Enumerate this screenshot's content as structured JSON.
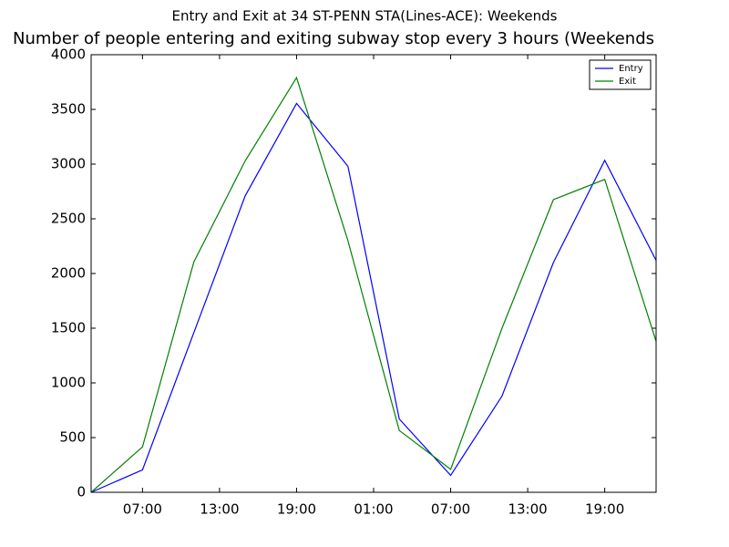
{
  "chart_data": {
    "type": "line",
    "suptitle": "Entry and Exit at 34 ST-PENN STA(Lines-ACE): Weekends",
    "title": "Number of people entering and exiting subway stop every 3 hours (Weekends",
    "x": [
      3,
      7,
      11,
      15,
      19,
      23,
      27,
      31,
      35,
      39,
      43,
      47
    ],
    "series": [
      {
        "name": "Entry",
        "color": "#0000ff",
        "values": [
          0,
          205,
          1460,
          2710,
          3555,
          2980,
          670,
          155,
          880,
          2100,
          3035,
          2120
        ]
      },
      {
        "name": "Exit",
        "color": "#008000",
        "values": [
          0,
          415,
          2105,
          3030,
          3790,
          2300,
          565,
          210,
          1500,
          2675,
          2860,
          1380
        ]
      }
    ],
    "xlim": [
      3,
      47
    ],
    "xticks": [
      {
        "value": 7,
        "label": "07:00"
      },
      {
        "value": 13,
        "label": "13:00"
      },
      {
        "value": 19,
        "label": "19:00"
      },
      {
        "value": 25,
        "label": "01:00"
      },
      {
        "value": 31,
        "label": "07:00"
      },
      {
        "value": 37,
        "label": "13:00"
      },
      {
        "value": 43,
        "label": "19:00"
      }
    ],
    "ylim": [
      0,
      4000
    ],
    "yticks": [
      0,
      500,
      1000,
      1500,
      2000,
      2500,
      3000,
      3500,
      4000
    ],
    "legend": "upper right"
  }
}
